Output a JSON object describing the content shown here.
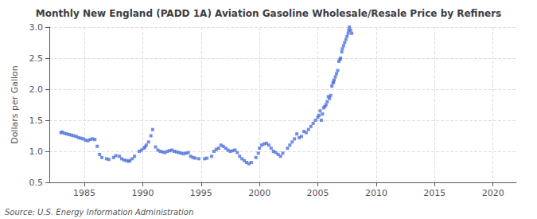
{
  "chart_data": {
    "type": "scatter",
    "title": "Monthly New England (PADD 1A) Aviation Gasoline Wholesale/Resale Price by Refiners",
    "ylabel": "Dollars per Gallon",
    "annotations": [
      "Source: U.S. Energy Information Administration"
    ],
    "marker": "square",
    "grid": true,
    "xlim": [
      1982,
      2022
    ],
    "ylim": [
      0.5,
      3.0
    ],
    "xticks": [
      1985,
      1990,
      1995,
      2000,
      2005,
      2010,
      2015,
      2020
    ],
    "yticks": [
      0.5,
      {
        "value": 1.0,
        "label": "1.0"
      },
      1.5,
      {
        "value": 2.0,
        "label": "2.0"
      },
      2.5,
      {
        "value": 3.0,
        "label": "3.0"
      }
    ],
    "x": [
      1983.0,
      1983.1,
      1983.3,
      1983.5,
      1983.7,
      1983.9,
      1984.1,
      1984.3,
      1984.5,
      1984.7,
      1984.9,
      1985.1,
      1985.3,
      1985.5,
      1985.7,
      1985.9,
      1986.1,
      1986.3,
      1986.5,
      1986.9,
      1987.1,
      1987.5,
      1987.7,
      1988.0,
      1988.2,
      1988.4,
      1988.6,
      1988.8,
      1988.9,
      1989.1,
      1989.3,
      1989.7,
      1989.9,
      1990.1,
      1990.2,
      1990.3,
      1990.5,
      1990.7,
      1990.85,
      1991.1,
      1991.3,
      1991.5,
      1991.7,
      1991.9,
      1992.1,
      1992.3,
      1992.5,
      1992.7,
      1992.9,
      1993.1,
      1993.3,
      1993.5,
      1993.7,
      1993.9,
      1994.1,
      1994.3,
      1994.5,
      1994.8,
      1995.3,
      1995.5,
      1995.9,
      1996.1,
      1996.3,
      1996.5,
      1996.7,
      1996.9,
      1997.1,
      1997.3,
      1997.5,
      1997.7,
      1997.9,
      1998.1,
      1998.3,
      1998.5,
      1998.7,
      1998.9,
      1999.1,
      1999.3,
      1999.7,
      1999.9,
      2000.0,
      2000.2,
      2000.4,
      2000.6,
      2000.8,
      2001.0,
      2001.2,
      2001.4,
      2001.6,
      2001.8,
      2002.0,
      2002.4,
      2002.6,
      2002.8,
      2003.0,
      2003.2,
      2003.4,
      2003.6,
      2003.8,
      2004.0,
      2004.2,
      2004.4,
      2004.6,
      2004.8,
      2005.0,
      2005.1,
      2005.2,
      2005.3,
      2005.4,
      2005.5,
      2005.6,
      2005.7,
      2005.8,
      2005.9,
      2006.0,
      2006.1,
      2006.2,
      2006.3,
      2006.35,
      2006.4,
      2006.5,
      2006.6,
      2006.7,
      2006.8,
      2006.9,
      2006.95,
      2007.05,
      2007.1,
      2007.2,
      2007.3,
      2007.4,
      2007.5,
      2007.6,
      2007.65,
      2007.7,
      2007.8,
      2007.9
    ],
    "values": [
      1.3,
      1.31,
      1.29,
      1.28,
      1.27,
      1.26,
      1.25,
      1.24,
      1.22,
      1.21,
      1.2,
      1.18,
      1.17,
      1.19,
      1.2,
      1.19,
      1.08,
      0.95,
      0.9,
      0.88,
      0.87,
      0.9,
      0.93,
      0.92,
      0.88,
      0.86,
      0.85,
      0.84,
      0.85,
      0.88,
      0.92,
      1.0,
      1.02,
      1.05,
      1.07,
      1.1,
      1.15,
      1.25,
      1.35,
      1.07,
      1.02,
      1.0,
      0.99,
      0.98,
      1.0,
      1.01,
      1.02,
      1.0,
      0.99,
      0.98,
      0.97,
      0.96,
      0.97,
      0.98,
      0.92,
      0.9,
      0.89,
      0.88,
      0.88,
      0.89,
      0.92,
      1.0,
      1.03,
      1.05,
      1.1,
      1.08,
      1.05,
      1.02,
      1.0,
      1.01,
      1.02,
      0.98,
      0.92,
      0.88,
      0.85,
      0.82,
      0.8,
      0.82,
      0.9,
      0.97,
      1.05,
      1.1,
      1.12,
      1.13,
      1.1,
      1.05,
      1.0,
      0.98,
      0.95,
      0.92,
      0.97,
      1.05,
      1.1,
      1.15,
      1.2,
      1.28,
      1.22,
      1.24,
      1.32,
      1.3,
      1.35,
      1.4,
      1.45,
      1.5,
      1.55,
      1.58,
      1.65,
      1.5,
      1.6,
      1.7,
      1.72,
      1.75,
      1.8,
      1.88,
      1.85,
      1.9,
      2.05,
      2.1,
      2.12,
      2.15,
      2.2,
      2.25,
      2.3,
      2.45,
      2.48,
      2.5,
      2.6,
      2.65,
      2.7,
      2.75,
      2.8,
      2.85,
      2.9,
      2.95,
      3.0,
      2.95,
      2.9
    ]
  }
}
